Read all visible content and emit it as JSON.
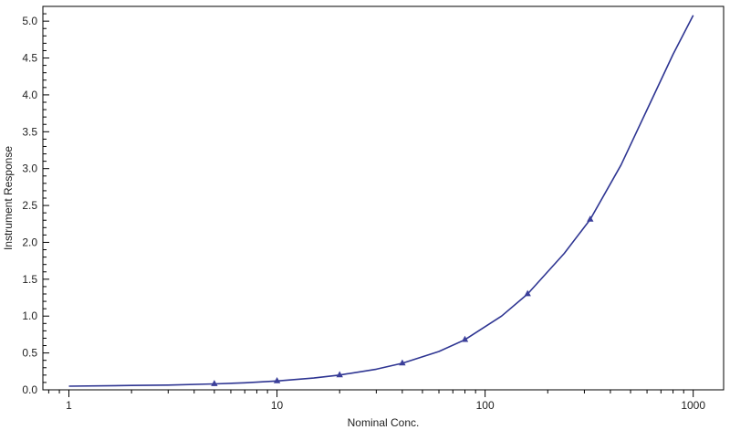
{
  "chart_data": {
    "type": "line",
    "xlabel": "Nominal Conc.",
    "ylabel": "Instrument Response",
    "x_scale": "log",
    "xlim": [
      0.75,
      1400
    ],
    "ylim": [
      0,
      5.2
    ],
    "x_ticks": [
      {
        "value": 1,
        "label": "1"
      },
      {
        "value": 10,
        "label": "10"
      },
      {
        "value": 100,
        "label": "100"
      },
      {
        "value": 1000,
        "label": "1000"
      }
    ],
    "y_ticks": [
      {
        "value": 0,
        "label": "0.0"
      },
      {
        "value": 0.5,
        "label": "0.5"
      },
      {
        "value": 1.0,
        "label": "1.0"
      },
      {
        "value": 1.5,
        "label": "1.5"
      },
      {
        "value": 2.0,
        "label": "2.0"
      },
      {
        "value": 2.5,
        "label": "2.5"
      },
      {
        "value": 3.0,
        "label": "3.0"
      },
      {
        "value": 3.5,
        "label": "3.5"
      },
      {
        "value": 4.0,
        "label": "4.0"
      },
      {
        "value": 4.5,
        "label": "4.5"
      },
      {
        "value": 5.0,
        "label": "5.0"
      }
    ],
    "series": [
      {
        "kind": "points",
        "marker": "triangle",
        "color": "#3b3f9a",
        "x": [
          5,
          10,
          20,
          40,
          80,
          160,
          320
        ],
        "y": [
          0.08,
          0.12,
          0.2,
          0.36,
          0.68,
          1.3,
          2.31
        ]
      },
      {
        "kind": "fit-curve",
        "color": "#2e3592",
        "x": [
          1,
          2,
          3,
          5,
          7,
          10,
          15,
          20,
          30,
          40,
          60,
          80,
          120,
          160,
          240,
          320,
          450,
          600,
          800,
          1000
        ],
        "y": [
          0.05,
          0.06,
          0.065,
          0.08,
          0.095,
          0.12,
          0.16,
          0.2,
          0.28,
          0.36,
          0.52,
          0.68,
          1.0,
          1.3,
          1.85,
          2.31,
          3.05,
          3.8,
          4.55,
          5.08
        ]
      }
    ],
    "grid": false,
    "legend": "none"
  }
}
